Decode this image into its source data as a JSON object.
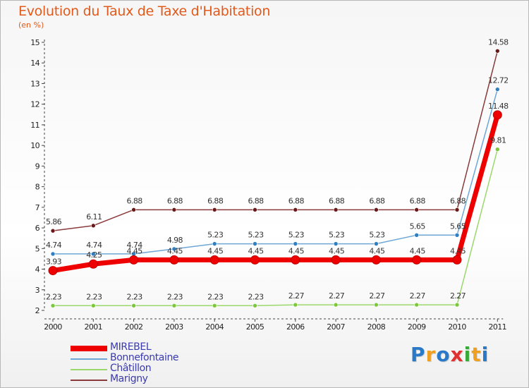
{
  "title": "Evolution du Taux de Taxe d'Habitation",
  "subtitle": "(en %)",
  "logo": {
    "text": "Proxiti",
    "letters": [
      "P",
      "r",
      "o",
      "x",
      "i",
      "t",
      "i"
    ],
    "colors": [
      "#2a78c8",
      "#f0a020",
      "#2a78c8",
      "#e03030",
      "#38a838",
      "#f0a020",
      "#2a78c8"
    ]
  },
  "chart_data": {
    "type": "line",
    "title": "Evolution du Taux de Taxe d'Habitation",
    "ylabel": "(en %)",
    "ylim": [
      2,
      15
    ],
    "yticks": [
      "2",
      "3",
      "4",
      "5",
      "6",
      "7",
      "8",
      "9",
      "10",
      "11",
      "12",
      "13",
      "14",
      "15"
    ],
    "categories": [
      "2000",
      "2001",
      "2002",
      "2003",
      "2004",
      "2005",
      "2006",
      "2007",
      "2008",
      "2009",
      "2010",
      "2011"
    ],
    "series": [
      {
        "name": "MIREBEL",
        "color": "#ee0000",
        "width": 7,
        "values": [
          3.93,
          4.25,
          4.45,
          4.45,
          4.45,
          4.45,
          4.45,
          4.45,
          4.45,
          4.45,
          4.45,
          11.48
        ],
        "labels": [
          "3.93",
          "4.25",
          "4.45",
          "4.45",
          "4.45",
          "4.45",
          "4.45",
          "4.45",
          "4.45",
          "4.45",
          "4.45",
          "11.48"
        ]
      },
      {
        "name": "Bonnefontaine",
        "color": "#6ea6d6",
        "dot": "#2f7fc2",
        "width": 1.5,
        "values": [
          4.74,
          4.74,
          4.74,
          4.98,
          5.23,
          5.23,
          5.23,
          5.23,
          5.23,
          5.65,
          5.65,
          12.72
        ],
        "labels": [
          "4.74",
          "4.74",
          "4.74",
          "4.98",
          "5.23",
          "5.23",
          "5.23",
          "5.23",
          "5.23",
          "5.65",
          "5.65",
          "12.72"
        ]
      },
      {
        "name": "Châtillon",
        "color": "#9ad86c",
        "dot": "#7cc83c",
        "width": 1.5,
        "values": [
          2.23,
          2.23,
          2.23,
          2.23,
          2.23,
          2.23,
          2.27,
          2.27,
          2.27,
          2.27,
          2.27,
          9.81
        ],
        "labels": [
          "2.23",
          "2.23",
          "2.23",
          "2.23",
          "2.23",
          "2.23",
          "2.27",
          "2.27",
          "2.27",
          "2.27",
          "2.27",
          "9.81"
        ]
      },
      {
        "name": "Marigny",
        "color": "#8a3a3a",
        "dot": "#6a1818",
        "width": 1.5,
        "values": [
          5.86,
          6.11,
          6.88,
          6.88,
          6.88,
          6.88,
          6.88,
          6.88,
          6.88,
          6.88,
          6.88,
          14.58
        ],
        "labels": [
          "5.86",
          "6.11",
          "6.88",
          "6.88",
          "6.88",
          "6.88",
          "6.88",
          "6.88",
          "6.88",
          "6.88",
          "6.88",
          "14.58"
        ]
      }
    ],
    "legend_position": "bottom-left"
  }
}
